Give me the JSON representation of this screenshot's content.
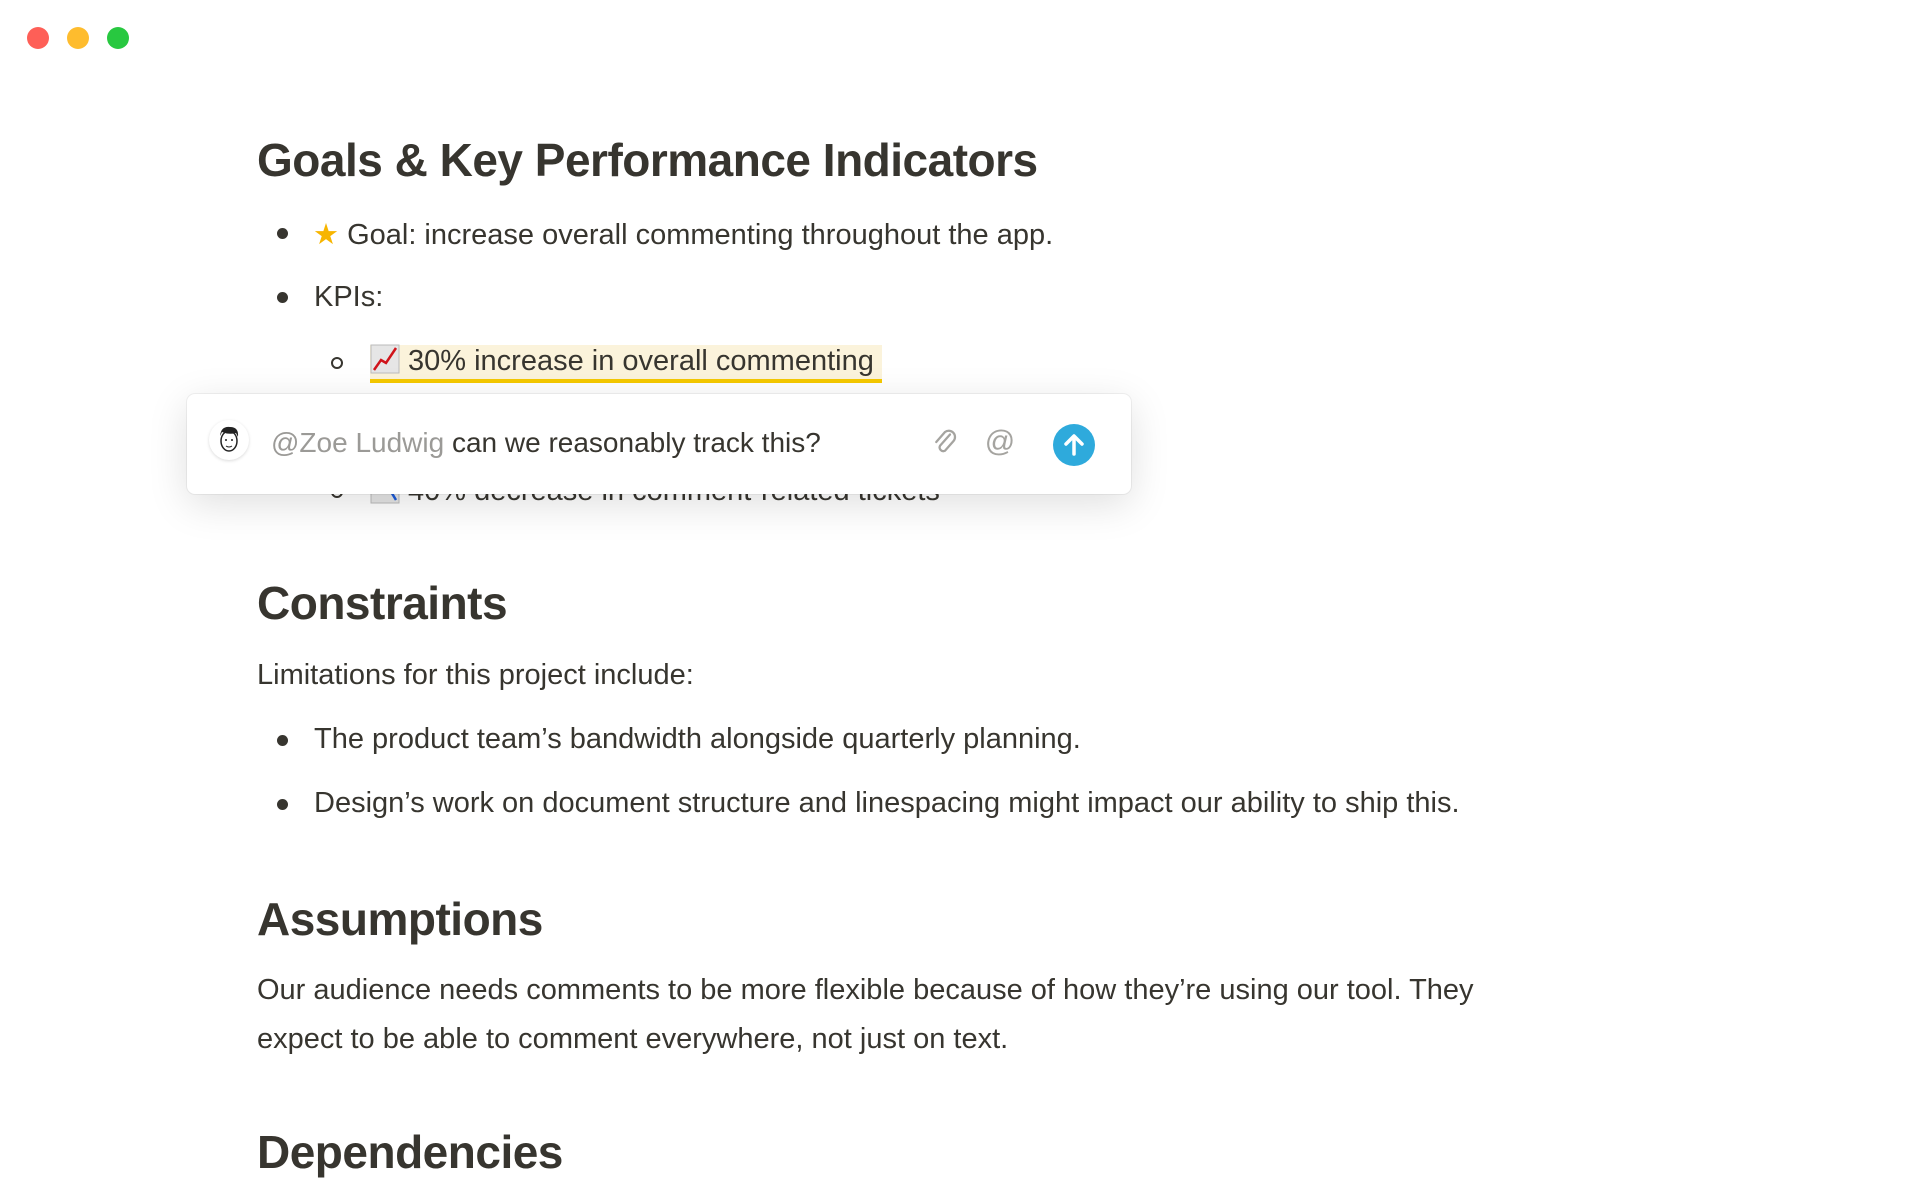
{
  "window": {
    "controls": [
      "close",
      "minimize",
      "zoom"
    ],
    "colors": {
      "close": "#fe5f57",
      "minimize": "#febc2e",
      "zoom": "#28c840"
    }
  },
  "doc": {
    "goals": {
      "heading": "Goals & Key Performance Indicators",
      "goal": "Goal: increase overall commenting throughout the app.",
      "kpis_label": "KPIs:",
      "kpi1": "30% increase in overall commenting",
      "kpi2": "40% decrease in comment-related tickets"
    },
    "constraints": {
      "heading": "Constraints",
      "intro": "Limitations for this project include:",
      "items": [
        "The product team’s bandwidth alongside quarterly planning.",
        "Design’s work on document structure and linespacing might impact our ability to ship this."
      ]
    },
    "assumptions": {
      "heading": "Assumptions",
      "line1": "Our audience needs comments to be more flexible because of how they’re using our tool. They",
      "line2": "expect to be able to comment everywhere, not just on text."
    },
    "dependencies": {
      "heading": "Dependencies"
    }
  },
  "comment": {
    "mention": "@Zoe Ludwig",
    "text": " can we reasonably track this?",
    "icons": [
      "paperclip-icon",
      "at-icon",
      "send-arrow-icon"
    ],
    "accent": "#2eaadc",
    "highlight_underline": "#f5c900"
  }
}
